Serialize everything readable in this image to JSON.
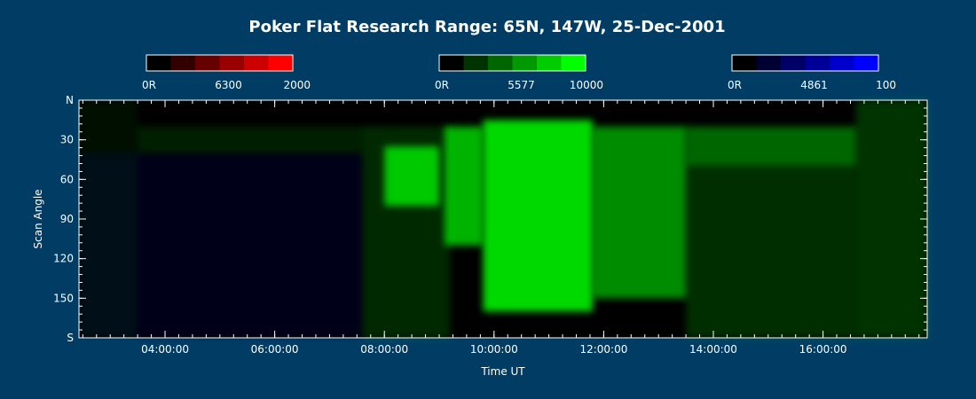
{
  "chart_data": {
    "type": "heatmap",
    "title": "Poker Flat Research Range: 65N, 147W, 25-Dec-2001",
    "xlabel": "Time UT",
    "ylabel": "Scan Angle",
    "x_ticks": [
      "04:00:00",
      "06:00:00",
      "08:00:00",
      "10:00:00",
      "12:00:00",
      "14:00:00",
      "16:00:00"
    ],
    "x_tick_hours": [
      4,
      6,
      8,
      10,
      12,
      14,
      16
    ],
    "xlim_hours": [
      2.43,
      17.9
    ],
    "y_ticks": [
      "N",
      "30",
      "60",
      "90",
      "120",
      "150",
      "S"
    ],
    "y_tick_values": [
      0,
      30,
      60,
      90,
      120,
      150,
      180
    ],
    "ylim": [
      0,
      180
    ],
    "colorbars": [
      {
        "name": "6300",
        "min_label": "0R",
        "center_label": "6300",
        "max_label": "2000",
        "colors": [
          "#000000",
          "#330000",
          "#660000",
          "#990000",
          "#cc0000",
          "#ff0000"
        ]
      },
      {
        "name": "5577",
        "min_label": "0R",
        "center_label": "5577",
        "max_label": "10000",
        "colors": [
          "#000000",
          "#003300",
          "#006600",
          "#009900",
          "#00cc00",
          "#00ff00"
        ]
      },
      {
        "name": "4861",
        "min_label": "0R",
        "center_label": "4861",
        "max_label": "100",
        "colors": [
          "#000000",
          "#000033",
          "#000066",
          "#000099",
          "#0000cc",
          "#0000ff"
        ]
      }
    ],
    "green_intensity_regions": [
      {
        "t0": 2.43,
        "t1": 3.5,
        "a0": 0,
        "a1": 180,
        "level": 0.06
      },
      {
        "t0": 3.5,
        "t1": 7.6,
        "a0": 20,
        "a1": 40,
        "level": 0.12
      },
      {
        "t0": 7.6,
        "t1": 9.2,
        "a0": 20,
        "a1": 180,
        "level": 0.16
      },
      {
        "t0": 8.0,
        "t1": 9.0,
        "a0": 35,
        "a1": 80,
        "level": 0.75
      },
      {
        "t0": 9.1,
        "t1": 9.8,
        "a0": 20,
        "a1": 110,
        "level": 0.7
      },
      {
        "t0": 9.8,
        "t1": 11.8,
        "a0": 15,
        "a1": 160,
        "level": 0.85
      },
      {
        "t0": 11.8,
        "t1": 13.5,
        "a0": 20,
        "a1": 150,
        "level": 0.55
      },
      {
        "t0": 13.5,
        "t1": 16.6,
        "a0": 20,
        "a1": 50,
        "level": 0.4
      },
      {
        "t0": 13.5,
        "t1": 16.6,
        "a0": 50,
        "a1": 180,
        "level": 0.18
      },
      {
        "t0": 16.6,
        "t1": 17.9,
        "a0": 0,
        "a1": 180,
        "level": 0.2
      }
    ],
    "blue_intensity_regions": [
      {
        "t0": 2.43,
        "t1": 7.6,
        "a0": 40,
        "a1": 180,
        "level": 0.22
      }
    ],
    "red_intensity_regions": []
  }
}
